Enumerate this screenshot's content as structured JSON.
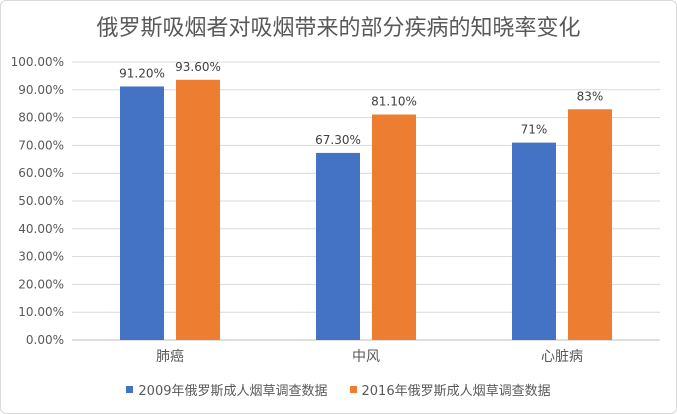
{
  "chart_data": {
    "type": "bar",
    "title": "俄罗斯吸烟者对吸烟带来的部分疾病的知晓率变化",
    "categories": [
      "肺癌",
      "中风",
      "心脏病"
    ],
    "series": [
      {
        "name": "2009年俄罗斯成人烟草调查数据",
        "color": "#4472c4",
        "values": [
          91.2,
          67.3,
          71
        ],
        "labels": [
          "91.20%",
          "67.30%",
          "71%"
        ]
      },
      {
        "name": "2016年俄罗斯成人烟草调查数据",
        "color": "#ed7d31",
        "values": [
          93.6,
          81.1,
          83
        ],
        "labels": [
          "93.60%",
          "81.10%",
          "83%"
        ]
      }
    ],
    "ylim": [
      0,
      100
    ],
    "yticks": [
      "0.00%",
      "10.00%",
      "20.00%",
      "30.00%",
      "40.00%",
      "50.00%",
      "60.00%",
      "70.00%",
      "80.00%",
      "90.00%",
      "100.00%"
    ],
    "grid": true,
    "legend_position": "bottom"
  }
}
